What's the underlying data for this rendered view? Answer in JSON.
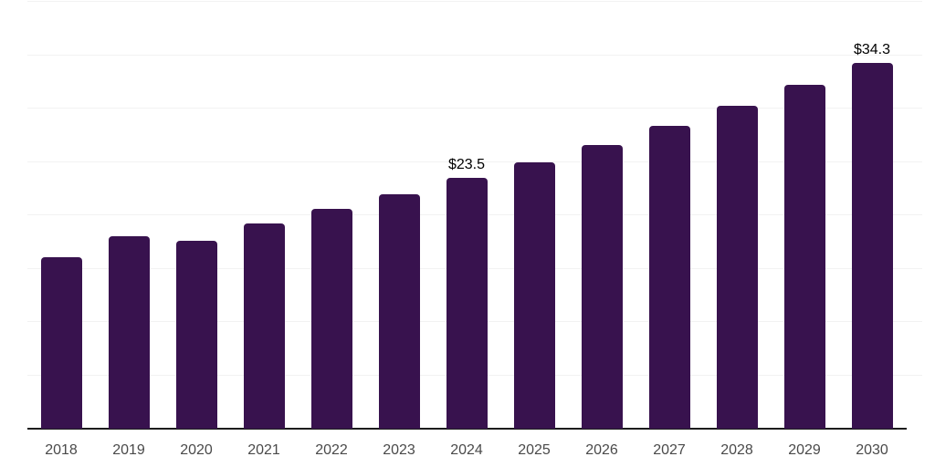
{
  "page": {
    "background_color": "#ffffff"
  },
  "chart_data": {
    "type": "bar",
    "title": "",
    "xlabel": "",
    "ylabel": "",
    "categories": [
      "2018",
      "2019",
      "2020",
      "2021",
      "2022",
      "2023",
      "2024",
      "2025",
      "2026",
      "2027",
      "2028",
      "2029",
      "2030"
    ],
    "values": [
      16.1,
      18.0,
      17.6,
      19.2,
      20.6,
      22.0,
      23.5,
      25.0,
      26.6,
      28.4,
      30.3,
      32.2,
      34.3
    ],
    "point_labels": [
      "",
      "",
      "",
      "",
      "",
      "",
      "$23.5",
      "",
      "",
      "",
      "",
      "",
      "$34.3"
    ],
    "ylim": [
      0,
      40
    ],
    "grid_step": 5,
    "grid": "on",
    "legend": "none",
    "colors": {
      "bar": "#38124E",
      "axis_line": "#1c1c1c",
      "gridline": "#f2f2f2",
      "tick_label": "#4a4a4a",
      "point_label": "#000000"
    }
  }
}
